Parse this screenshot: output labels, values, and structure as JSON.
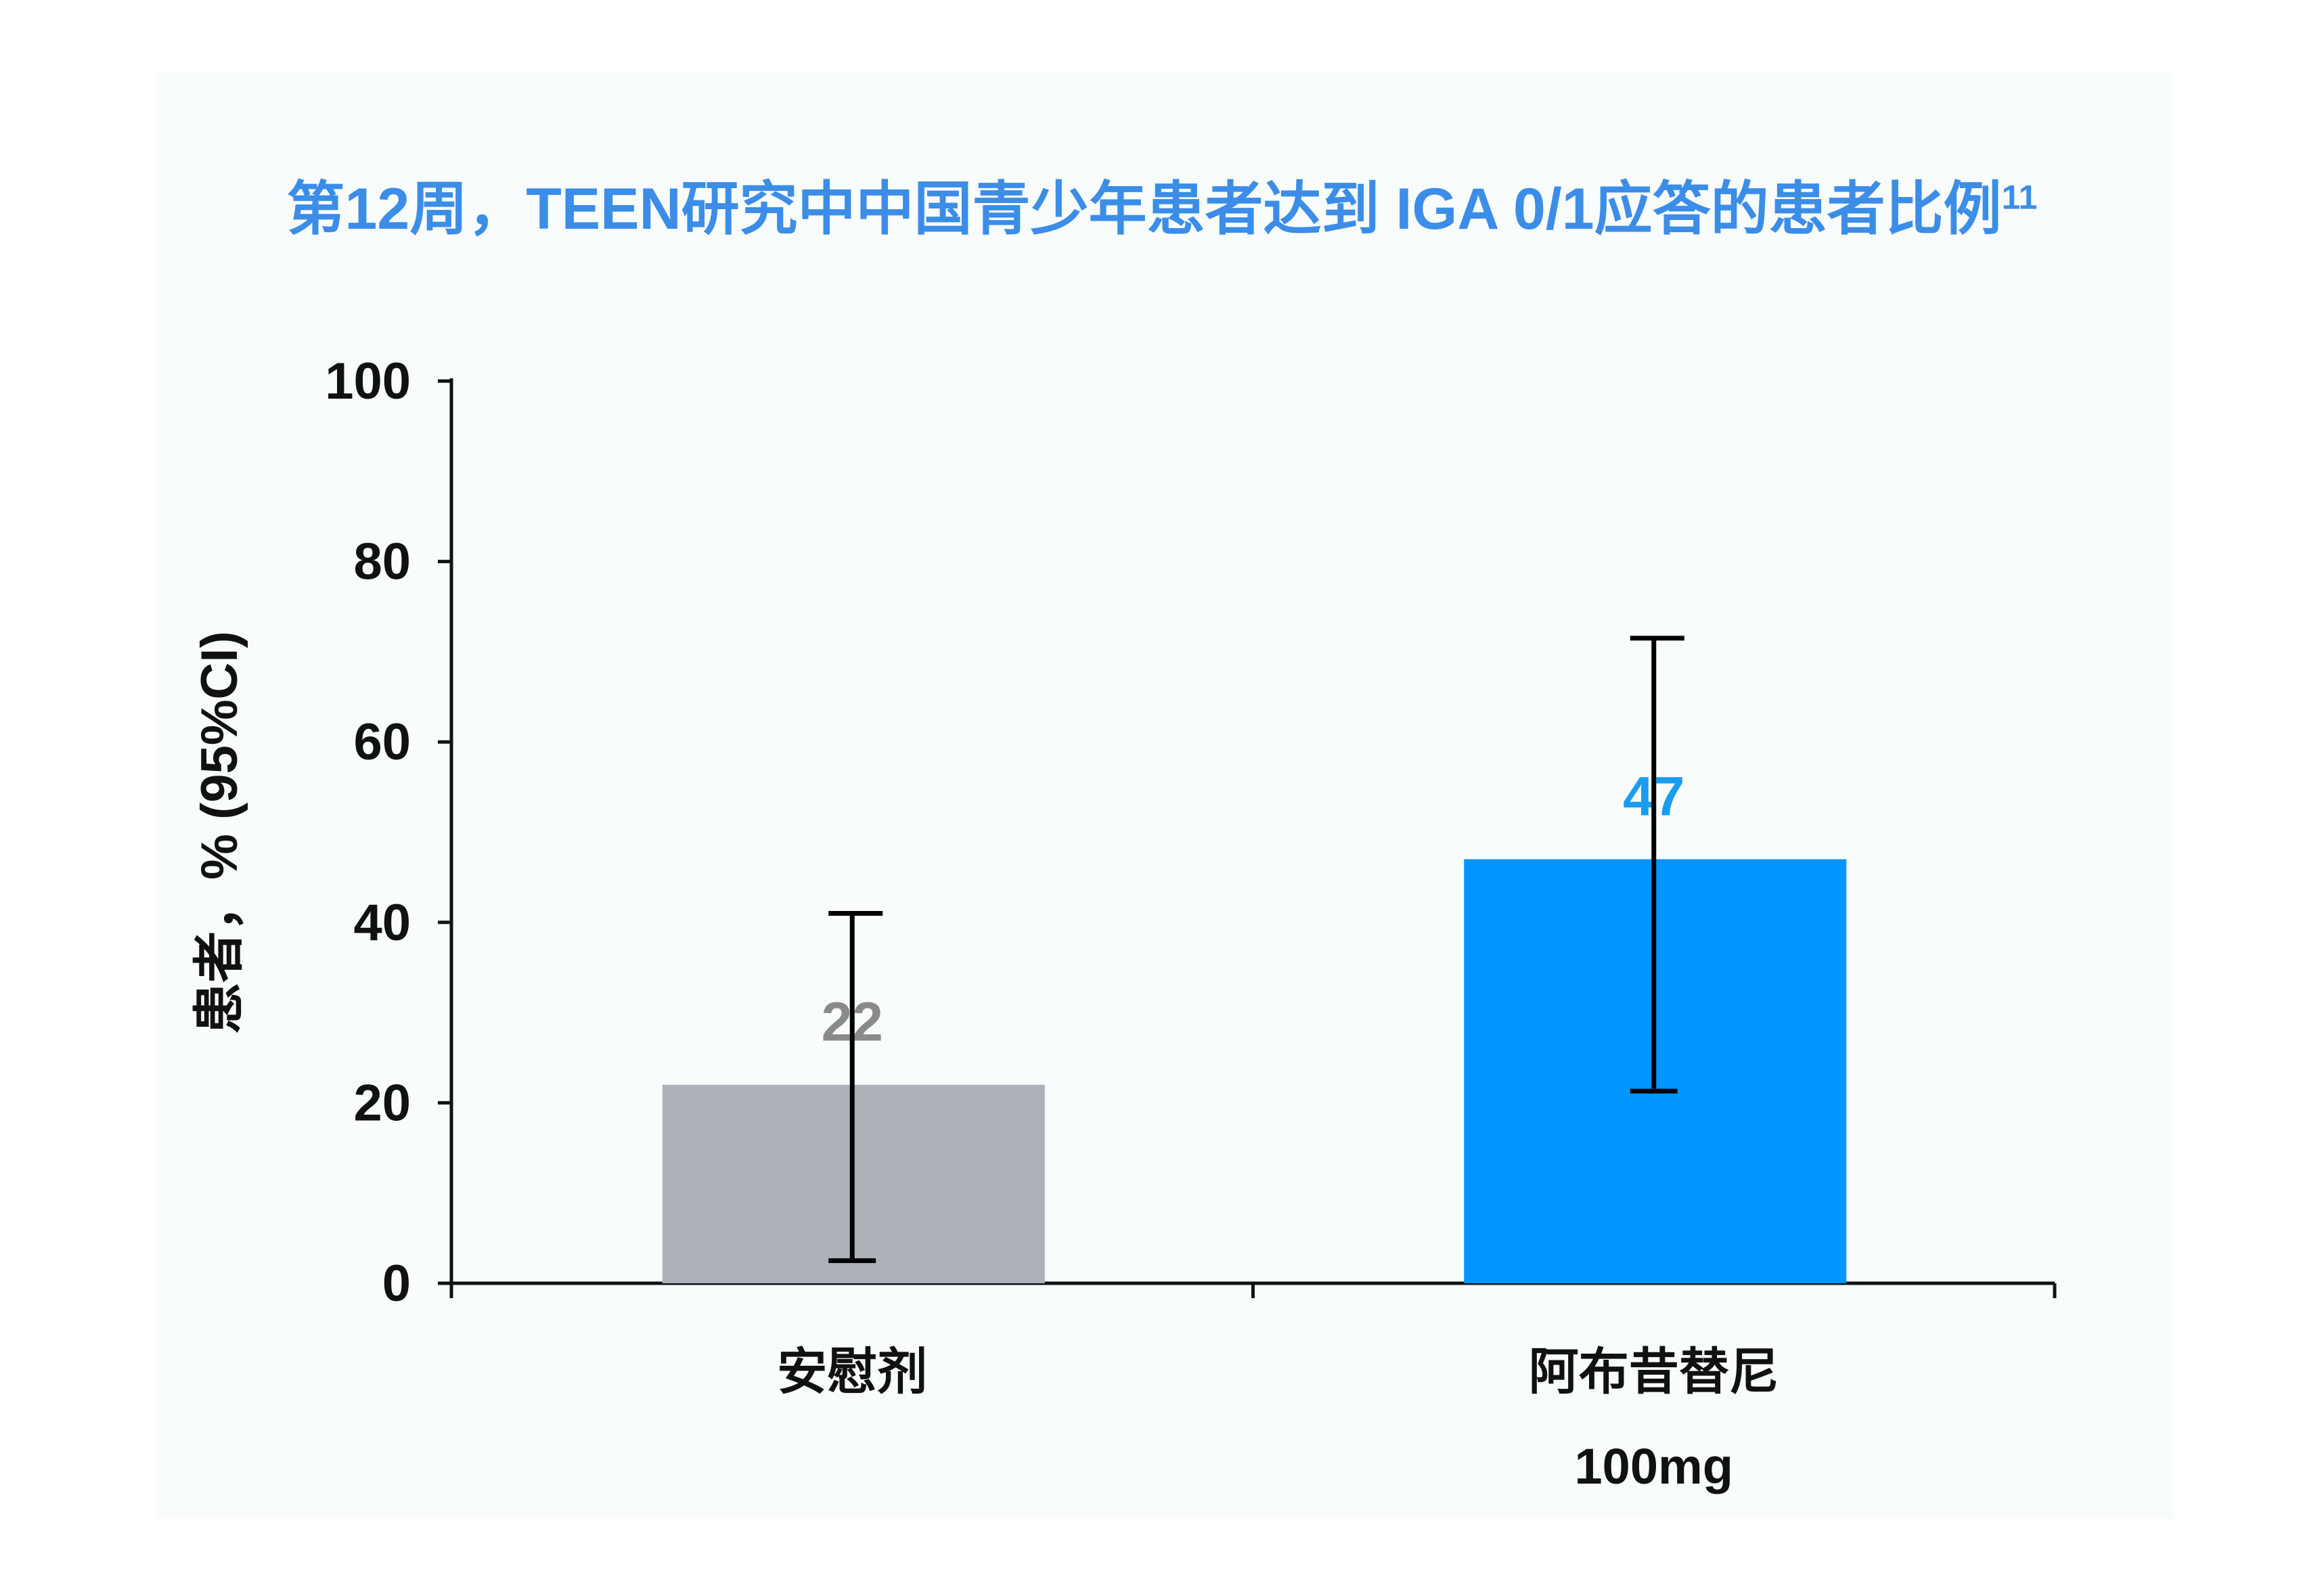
{
  "chart_data": {
    "type": "bar",
    "title": "第12周，TEEN研究中中国青少年患者达到 IGA 0/1应答的患者比例",
    "title_superscript": "11",
    "xlabel": "",
    "ylabel": "患者，% (95%CI)",
    "ylim": [
      0,
      100
    ],
    "yticks": [
      0,
      20,
      40,
      60,
      80,
      100
    ],
    "grid": false,
    "categories": [
      "安慰剂",
      "阿布昔替尼 100mg"
    ],
    "category_lines": [
      [
        "安慰剂"
      ],
      [
        "阿布昔替尼",
        "100mg"
      ]
    ],
    "values": [
      22,
      47
    ],
    "ci_lower": [
      2.5,
      21.3
    ],
    "ci_upper": [
      41,
      71.5
    ],
    "data_labels": [
      "22",
      "47"
    ],
    "bar_colors": [
      "#adb2b9",
      "#0096ff"
    ],
    "label_colors": [
      "#8a8a8a",
      "#1a9cf0"
    ]
  }
}
